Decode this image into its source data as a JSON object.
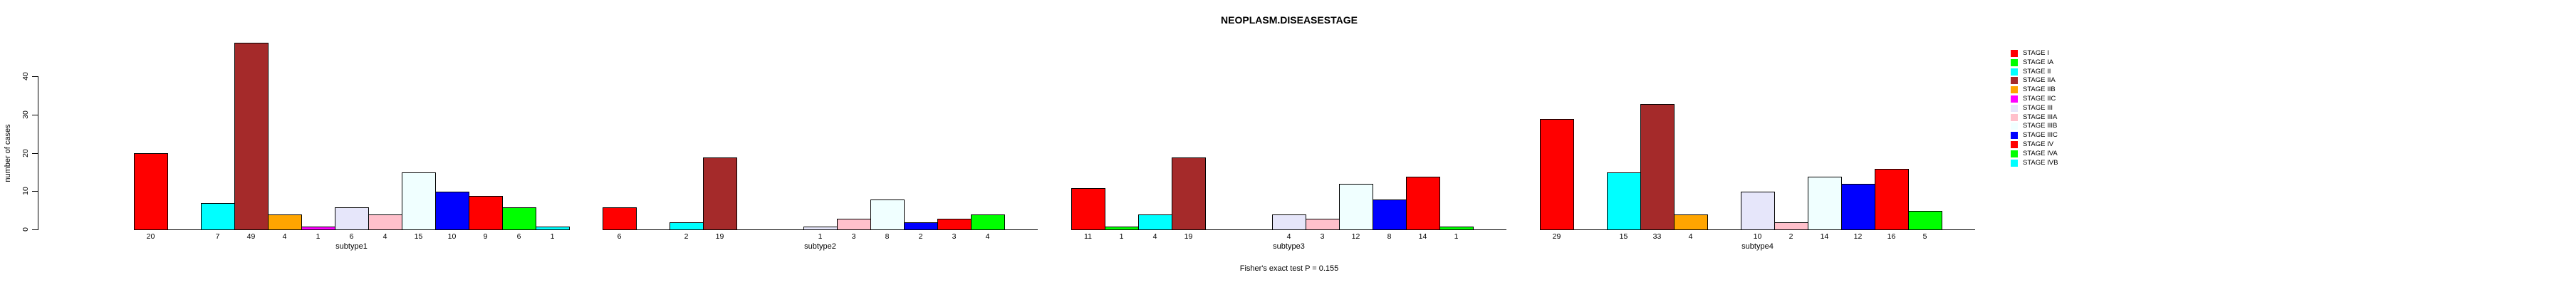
{
  "title": "NEOPLASM.DISEASESTAGE",
  "footer": {
    "text": "Fisher's exact test P = 0.155"
  },
  "chart_data": {
    "type": "bar",
    "title": "NEOPLASM.DISEASESTAGE",
    "ylabel": "number of cases",
    "xlabel": "",
    "ylim": [
      0,
      40
    ],
    "y_ticks": [
      0,
      10,
      20,
      30,
      40
    ],
    "grid": false,
    "legend_position": "right",
    "annotation": "Fisher's exact test P = 0.155",
    "stages": [
      {
        "name": "STAGE I",
        "color": "#FF0000"
      },
      {
        "name": "STAGE IA",
        "color": "#00FF00"
      },
      {
        "name": "STAGE II",
        "color": "#00FFFF"
      },
      {
        "name": "STAGE IIA",
        "color": "#A52A2A"
      },
      {
        "name": "STAGE IIB",
        "color": "#FFA500"
      },
      {
        "name": "STAGE IIC",
        "color": "#FF00FF"
      },
      {
        "name": "STAGE III",
        "color": "#E6E6FA"
      },
      {
        "name": "STAGE IIIA",
        "color": "#FFC0CB"
      },
      {
        "name": "STAGE IIIB",
        "color": "#F0FFFF"
      },
      {
        "name": "STAGE IIIC",
        "color": "#0000FF"
      },
      {
        "name": "STAGE IV",
        "color": "#FF0000"
      },
      {
        "name": "STAGE IVA",
        "color": "#00FF00"
      },
      {
        "name": "STAGE IVB",
        "color": "#00FFFF"
      }
    ],
    "groups": [
      {
        "label": "subtype1",
        "values": [
          20,
          0,
          7,
          49,
          4,
          1,
          6,
          4,
          15,
          10,
          9,
          6,
          1
        ]
      },
      {
        "label": "subtype2",
        "values": [
          6,
          0,
          2,
          19,
          0,
          0,
          1,
          3,
          8,
          2,
          3,
          4,
          0
        ]
      },
      {
        "label": "subtype3",
        "values": [
          11,
          1,
          4,
          19,
          0,
          0,
          4,
          3,
          12,
          8,
          14,
          1,
          0
        ]
      },
      {
        "label": "subtype4",
        "values": [
          29,
          0,
          15,
          33,
          4,
          0,
          10,
          2,
          14,
          12,
          16,
          5,
          0
        ]
      }
    ]
  }
}
